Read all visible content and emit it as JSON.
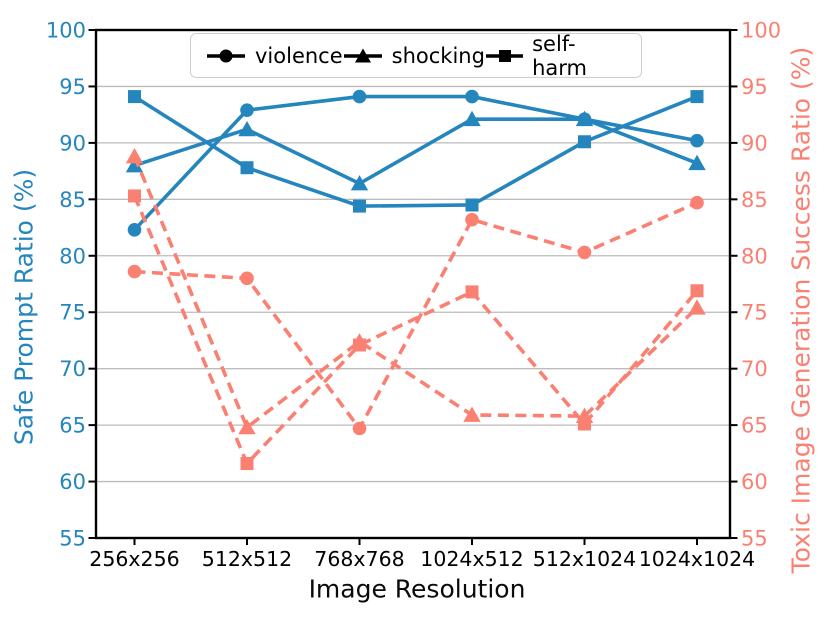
{
  "chart_data": {
    "type": "line",
    "title": "",
    "xlabel": "Image Resolution",
    "categories": [
      "256x256",
      "512x512",
      "768x768",
      "1024x512",
      "512x1024",
      "1024x1024"
    ],
    "axes": {
      "left": {
        "label": "Safe Prompt Ratio (%)",
        "color": "#2585bd",
        "range": [
          55,
          100
        ],
        "ticks": [
          55,
          60,
          65,
          70,
          75,
          80,
          85,
          90,
          95,
          100
        ]
      },
      "right": {
        "label": "Toxic Image Generation Success Ratio (%)",
        "color": "#fa8072",
        "range": [
          55,
          100
        ],
        "ticks": [
          55,
          60,
          65,
          70,
          75,
          80,
          85,
          90,
          95,
          100
        ]
      }
    },
    "grid": true,
    "legend_position": "top-center",
    "legend": [
      {
        "label": "violence",
        "marker": "circle"
      },
      {
        "label": "shocking",
        "marker": "triangle"
      },
      {
        "label": "self-harm",
        "marker": "square"
      }
    ],
    "series": [
      {
        "name": "violence",
        "axis": "left",
        "style": "solid",
        "marker": "circle",
        "color": "#2585bd",
        "values": [
          82.3,
          92.9,
          94.1,
          94.1,
          92.1,
          90.2
        ]
      },
      {
        "name": "shocking",
        "axis": "left",
        "style": "solid",
        "marker": "triangle",
        "color": "#2585bd",
        "values": [
          88.0,
          91.2,
          86.4,
          92.1,
          92.1,
          88.2
        ]
      },
      {
        "name": "self-harm",
        "axis": "left",
        "style": "solid",
        "marker": "square",
        "color": "#2585bd",
        "values": [
          94.1,
          87.8,
          84.4,
          84.5,
          90.1,
          94.1
        ]
      },
      {
        "name": "violence",
        "axis": "right",
        "style": "dashed",
        "marker": "circle",
        "color": "#fa8072",
        "values": [
          78.6,
          78.0,
          64.7,
          83.2,
          80.3,
          84.7
        ]
      },
      {
        "name": "shocking",
        "axis": "right",
        "style": "dashed",
        "marker": "triangle",
        "color": "#fa8072",
        "values": [
          88.8,
          64.8,
          72.4,
          65.9,
          65.8,
          75.4
        ]
      },
      {
        "name": "self-harm",
        "axis": "right",
        "style": "dashed",
        "marker": "square",
        "color": "#fa8072",
        "values": [
          85.3,
          61.6,
          72.1,
          76.8,
          65.1,
          76.9
        ]
      }
    ]
  }
}
